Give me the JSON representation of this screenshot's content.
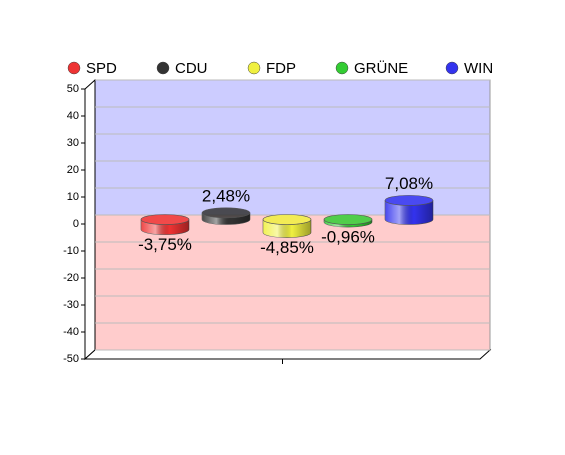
{
  "chart_data": {
    "type": "bar",
    "series": [
      {
        "name": "SPD",
        "color": "#ee3333",
        "values": [
          -3.75
        ],
        "value_labels": [
          "-3,75%"
        ]
      },
      {
        "name": "CDU",
        "color": "#333333",
        "values": [
          2.48
        ],
        "value_labels": [
          "2,48%"
        ]
      },
      {
        "name": "FDP",
        "color": "#f0f040",
        "values": [
          -4.85
        ],
        "value_labels": [
          "-4,85%"
        ]
      },
      {
        "name": "GRÜNE",
        "color": "#33cc33",
        "values": [
          -0.96
        ],
        "value_labels": [
          "-0,96%"
        ]
      },
      {
        "name": "WIN",
        "color": "#3333ee",
        "values": [
          7.08
        ],
        "value_labels": [
          "7,08%"
        ]
      }
    ],
    "ylim": [
      -50,
      50
    ],
    "yticks": [
      -50,
      -40,
      -30,
      -20,
      -10,
      0,
      10,
      20,
      30,
      40,
      50
    ],
    "grid": true,
    "legend": "top"
  }
}
